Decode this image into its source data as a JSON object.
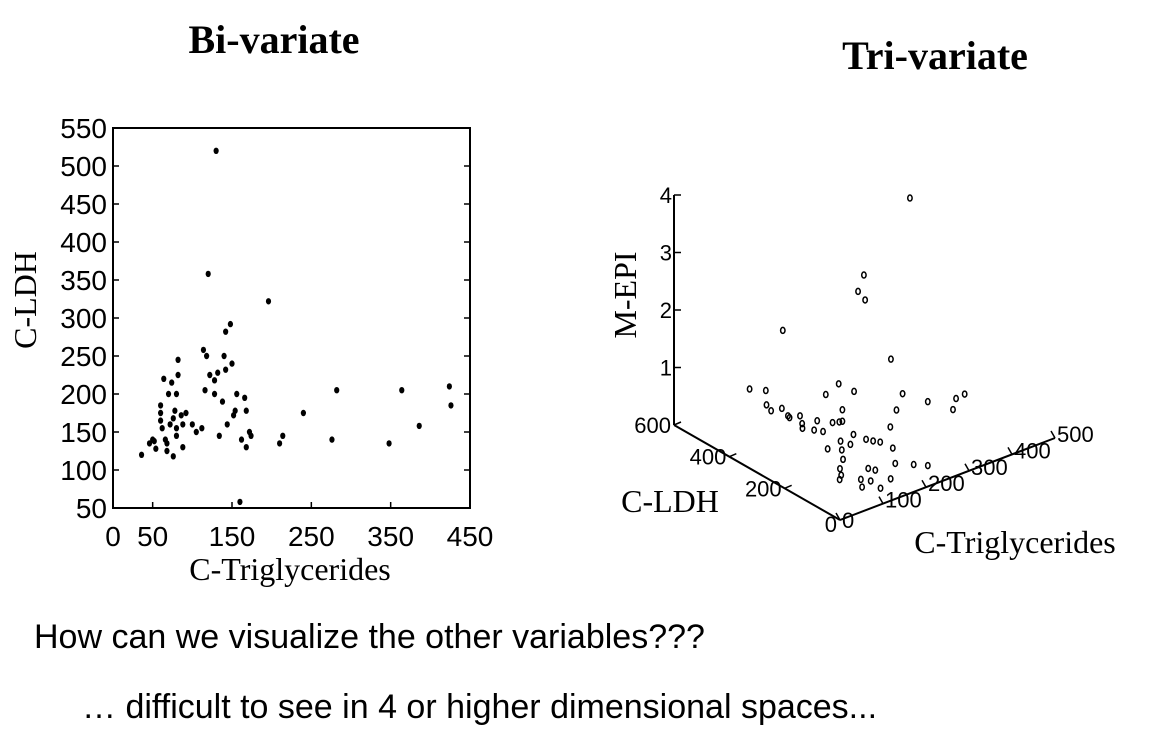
{
  "bivariate_title": "Bi-variate",
  "trivariate_title": "Tri-variate",
  "caption_line1": "How can we visualize the other variables???",
  "caption_line2": "… difficult to see in 4 or higher dimensional spaces...",
  "chart_data": [
    {
      "type": "scatter",
      "title": "Bi-variate",
      "xlabel": "C-Triglycerides",
      "ylabel": "C-LDH",
      "xlim": [
        0,
        450
      ],
      "ylim": [
        50,
        550
      ],
      "xticks": [
        "0",
        "50",
        "150",
        "250",
        "350",
        "450"
      ],
      "yticks": [
        "50",
        "100",
        "150",
        "200",
        "250",
        "300",
        "350",
        "400",
        "450",
        "500",
        "550"
      ],
      "grid": false,
      "points": [
        [
          36,
          120
        ],
        [
          46,
          135
        ],
        [
          50,
          140
        ],
        [
          52,
          138
        ],
        [
          54,
          128
        ],
        [
          60,
          165
        ],
        [
          60,
          175
        ],
        [
          60,
          185
        ],
        [
          62,
          155
        ],
        [
          64,
          220
        ],
        [
          66,
          140
        ],
        [
          68,
          135
        ],
        [
          68,
          125
        ],
        [
          72,
          160
        ],
        [
          70,
          200
        ],
        [
          74,
          215
        ],
        [
          76,
          118
        ],
        [
          76,
          168
        ],
        [
          78,
          178
        ],
        [
          80,
          145
        ],
        [
          80,
          155
        ],
        [
          80,
          200
        ],
        [
          82,
          225
        ],
        [
          82,
          245
        ],
        [
          86,
          172
        ],
        [
          88,
          160
        ],
        [
          88,
          130
        ],
        [
          92,
          175
        ],
        [
          100,
          160
        ],
        [
          105,
          150
        ],
        [
          112,
          155
        ],
        [
          114,
          258
        ],
        [
          116,
          205
        ],
        [
          118,
          250
        ],
        [
          120,
          358
        ],
        [
          122,
          225
        ],
        [
          128,
          218
        ],
        [
          128,
          200
        ],
        [
          130,
          520
        ],
        [
          132,
          228
        ],
        [
          134,
          145
        ],
        [
          138,
          190
        ],
        [
          140,
          250
        ],
        [
          142,
          282
        ],
        [
          142,
          232
        ],
        [
          144,
          160
        ],
        [
          148,
          292
        ],
        [
          150,
          240
        ],
        [
          152,
          172
        ],
        [
          154,
          178
        ],
        [
          156,
          200
        ],
        [
          160,
          58
        ],
        [
          162,
          140
        ],
        [
          166,
          195
        ],
        [
          168,
          178
        ],
        [
          168,
          130
        ],
        [
          172,
          150
        ],
        [
          174,
          145
        ],
        [
          196,
          322
        ],
        [
          210,
          135
        ],
        [
          214,
          145
        ],
        [
          240,
          175
        ],
        [
          276,
          140
        ],
        [
          282,
          205
        ],
        [
          348,
          135
        ],
        [
          364,
          205
        ],
        [
          386,
          158
        ],
        [
          424,
          210
        ],
        [
          426,
          185
        ]
      ]
    },
    {
      "type": "scatter",
      "title": "Tri-variate",
      "xlabel": "C-Triglycerides",
      "ylabel": "C-LDH",
      "zlabel": "M-EPI",
      "xlim": [
        0,
        500
      ],
      "ylim": [
        0,
        600
      ],
      "zlim": [
        0,
        4
      ],
      "xticks": [
        "0",
        "100",
        "200",
        "300",
        "400",
        "500"
      ],
      "yticks": [
        "0",
        "200",
        "400",
        "600"
      ],
      "zticks": [
        "1",
        "2",
        "3",
        "4"
      ],
      "grid": false,
      "points": [
        [
          60,
          420,
          0.95
        ],
        [
          72,
          380,
          1.0
        ],
        [
          65,
          350,
          0.75
        ],
        [
          80,
          390,
          0.7
        ],
        [
          90,
          350,
          0.72
        ],
        [
          72,
          300,
          0.78
        ],
        [
          80,
          260,
          0.65
        ],
        [
          95,
          330,
          0.6
        ],
        [
          100,
          300,
          0.7
        ],
        [
          105,
          300,
          0.55
        ],
        [
          115,
          240,
          0.55
        ],
        [
          120,
          280,
          0.45
        ],
        [
          140,
          300,
          0.5
        ],
        [
          130,
          200,
          0.45
        ],
        [
          150,
          260,
          0.55
        ],
        [
          160,
          240,
          0.6
        ],
        [
          120,
          180,
          0.38
        ],
        [
          110,
          160,
          0.3
        ],
        [
          90,
          140,
          0.25
        ],
        [
          80,
          120,
          0.22
        ],
        [
          70,
          110,
          0.2
        ],
        [
          100,
          200,
          0.4
        ],
        [
          140,
          180,
          0.42
        ],
        [
          160,
          200,
          0.48
        ],
        [
          170,
          170,
          0.45
        ],
        [
          180,
          160,
          0.42
        ],
        [
          190,
          150,
          0.4
        ],
        [
          200,
          120,
          0.35
        ],
        [
          100,
          80,
          0.2
        ],
        [
          90,
          60,
          0.15
        ],
        [
          130,
          100,
          0.25
        ],
        [
          140,
          90,
          0.22
        ],
        [
          220,
          160,
          0.55
        ],
        [
          260,
          200,
          0.62
        ],
        [
          300,
          240,
          0.68
        ],
        [
          320,
          180,
          0.65
        ],
        [
          360,
          140,
          0.7
        ],
        [
          380,
          140,
          0.72
        ],
        [
          340,
          120,
          0.62
        ],
        [
          180,
          80,
          0.25
        ],
        [
          210,
          60,
          0.2
        ],
        [
          230,
          40,
          0.18
        ],
        [
          110,
          60,
          0.2
        ],
        [
          120,
          40,
          0.1
        ],
        [
          150,
          50,
          0.15
        ],
        [
          160,
          300,
          0.9
        ],
        [
          190,
          300,
          1.0
        ],
        [
          200,
          260,
          0.95
        ],
        [
          160,
          240,
          0.8
        ],
        [
          140,
          220,
          0.7
        ],
        [
          200,
          220,
          2.65
        ],
        [
          190,
          230,
          2.8
        ],
        [
          210,
          240,
          3.0
        ],
        [
          60,
          300,
          2.3
        ],
        [
          260,
          220,
          1.45
        ],
        [
          420,
          400,
          3.3
        ]
      ]
    }
  ]
}
